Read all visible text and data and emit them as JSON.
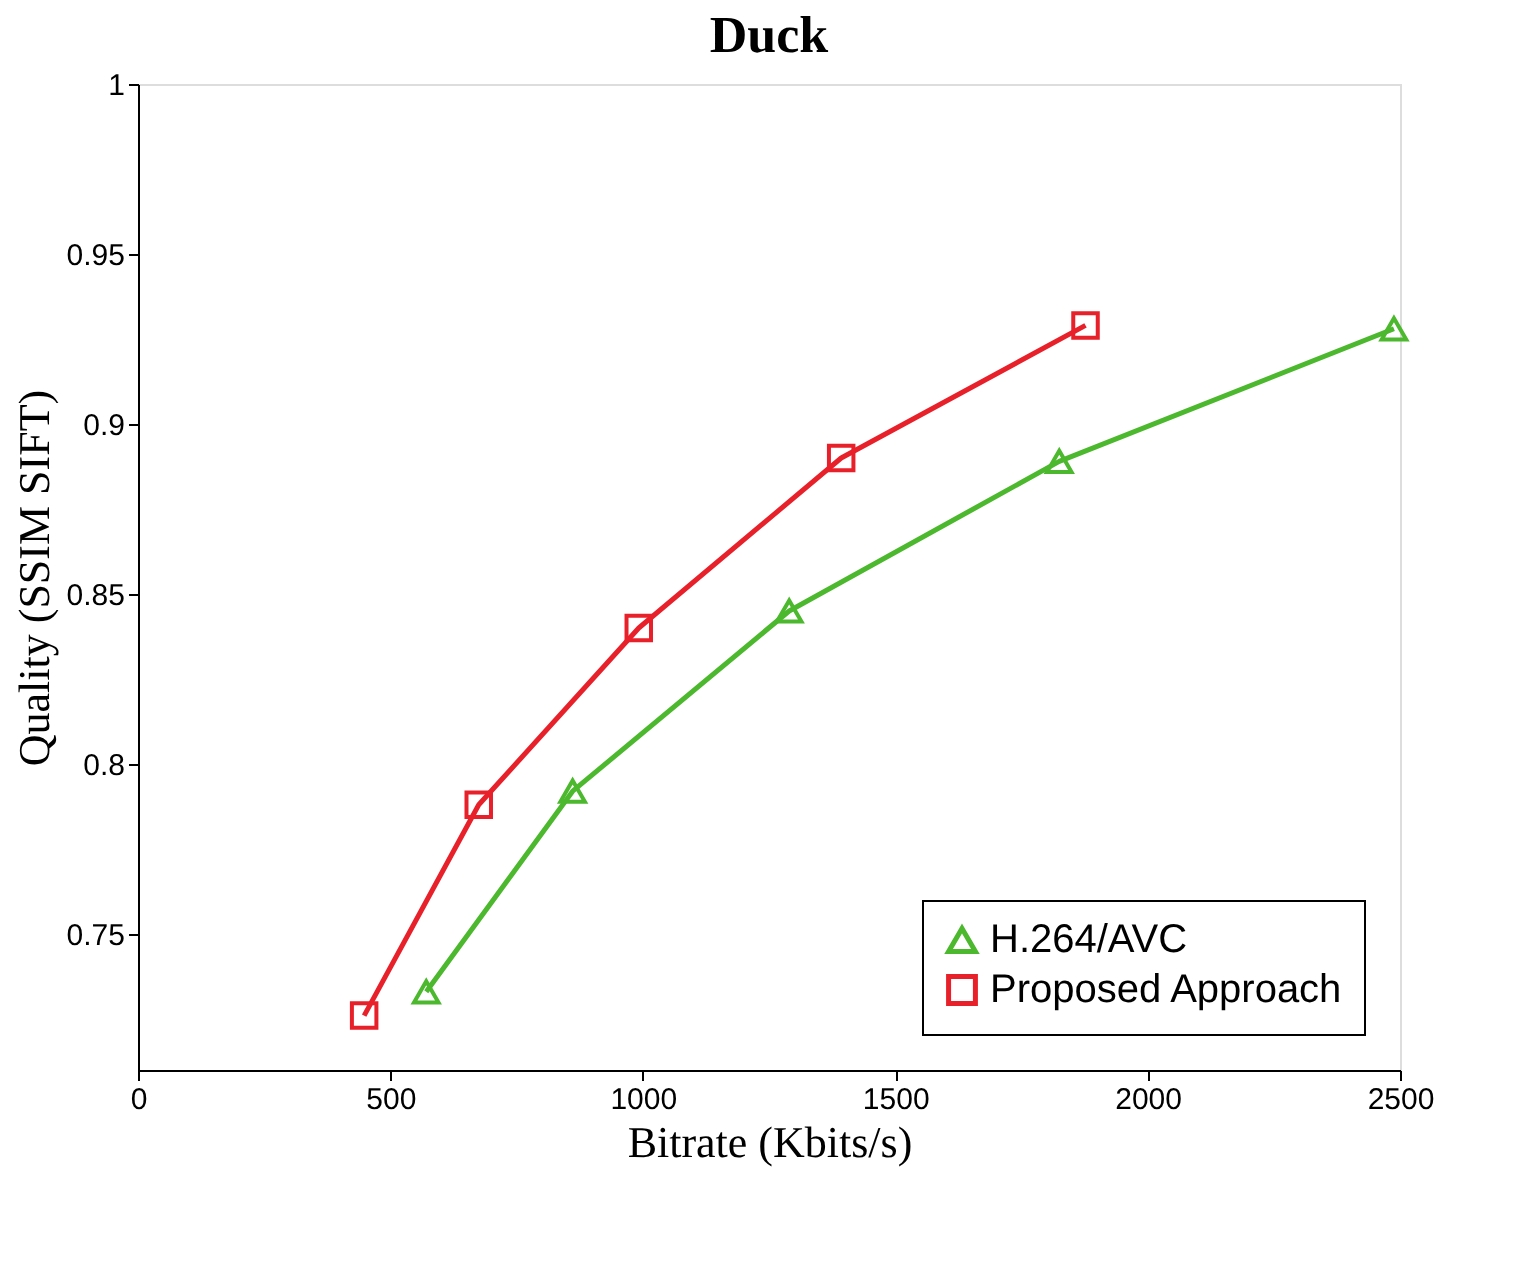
{
  "chart_data": {
    "type": "line",
    "title": "Duck",
    "xlabel": "Bitrate (Kbits/s)",
    "ylabel": "Quality (SSIM SIFT)",
    "xlim": [
      0,
      2500
    ],
    "xticks": [
      0,
      500,
      1000,
      1500,
      2000,
      2500
    ],
    "ylim": [
      0.71,
      1
    ],
    "yticks": [
      0.75,
      0.8,
      0.85,
      0.9,
      0.95,
      1
    ],
    "grid": false,
    "legend": "bottom right",
    "series": [
      {
        "name": "H.264/AVC",
        "color": "#4cb82e",
        "marker": "triangle",
        "x": [
          571,
          861,
          1290,
          1825,
          2488
        ],
        "values": [
          0.733,
          0.792,
          0.845,
          0.889,
          0.928
        ]
      },
      {
        "name": "Proposed Approach",
        "color": "#e8202a",
        "marker": "square",
        "x": [
          448,
          675,
          992,
          1393,
          1877
        ],
        "values": [
          0.726,
          0.788,
          0.84,
          0.89,
          0.929
        ]
      }
    ]
  }
}
